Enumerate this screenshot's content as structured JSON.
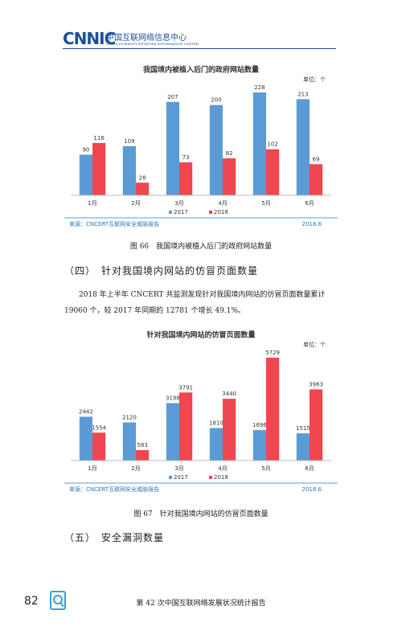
{
  "header": {
    "logo": "CNNIC",
    "org": "中国互联网络信息中心",
    "org_en": "CHINA INTERNET NETWORK INFORMATION CENTER"
  },
  "chart_data": [
    {
      "type": "bar",
      "title": "我国境内被植入后门的政府网站数量",
      "unit": "单位：个",
      "categories": [
        "1月",
        "2月",
        "3月",
        "4月",
        "5月",
        "6月"
      ],
      "series": [
        {
          "name": "2017",
          "color": "#5b9bd5",
          "values": [
            90,
            109,
            207,
            200,
            228,
            213
          ]
        },
        {
          "name": "2018",
          "color": "#f0464f",
          "values": [
            116,
            28,
            73,
            82,
            102,
            69
          ]
        }
      ],
      "source": "来源：CNCERT互联网安全威胁报告",
      "date": "2018.6"
    },
    {
      "type": "bar",
      "title": "针对我国境内网站的仿冒页面数量",
      "unit": "单位：个",
      "categories": [
        "1月",
        "2月",
        "3月",
        "4月",
        "5月",
        "6月"
      ],
      "series": [
        {
          "name": "2017",
          "color": "#5b9bd5",
          "values": [
            2442,
            2120,
            3198,
            1810,
            1696,
            1515
          ]
        },
        {
          "name": "2018",
          "color": "#f0464f",
          "values": [
            1554,
            583,
            3791,
            3440,
            5729,
            3963
          ]
        }
      ],
      "source": "来源：CNCERT互联网安全威胁报告",
      "date": "2018.6"
    }
  ],
  "captions": [
    "图 66　我国境内被植入后门的政府网站数量",
    "图 67　针对我国境内网站的仿冒页面数量"
  ],
  "sections": [
    "（四）　针对我国境内网站的仿冒页面数量",
    "（五）　安全漏洞数量"
  ],
  "paragraph": "2018 年上半年 CNCERT 共监测发现针对我国境内网站的仿冒页面数量累计 19060 个，较 2017 年同期的 12781 个增长 49.1%。",
  "footer": {
    "page": "82",
    "title": "第 42 次中国互联网络发展状况统计报告"
  }
}
